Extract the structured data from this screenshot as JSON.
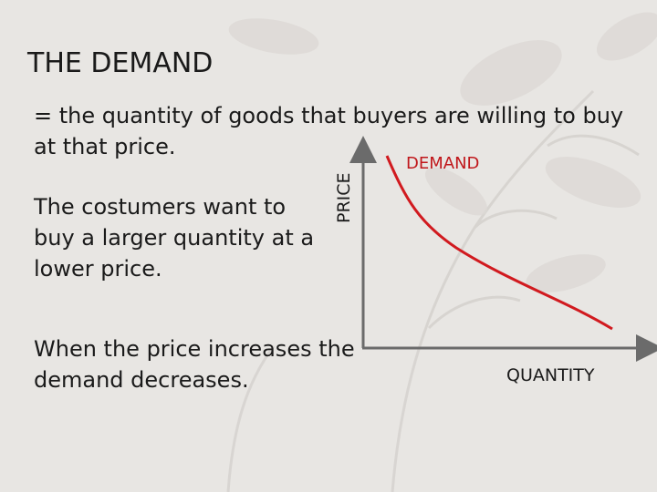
{
  "slide": {
    "title": "THE DEMAND",
    "definition": "= the quantity of goods that buyers are willing to buy at that price.",
    "point1": "The costumers want to buy a larger quantity at a lower price.",
    "point2": "When the price increases the demand decreases."
  },
  "diagram": {
    "y_axis_label": "PRICE",
    "x_axis_label": "QUANTITY",
    "curve_label": "DEMAND",
    "colors": {
      "axis": "#6b6b6b",
      "curve": "#d11a1f",
      "label": "#c0171b",
      "background": "#e8e6e3"
    }
  }
}
